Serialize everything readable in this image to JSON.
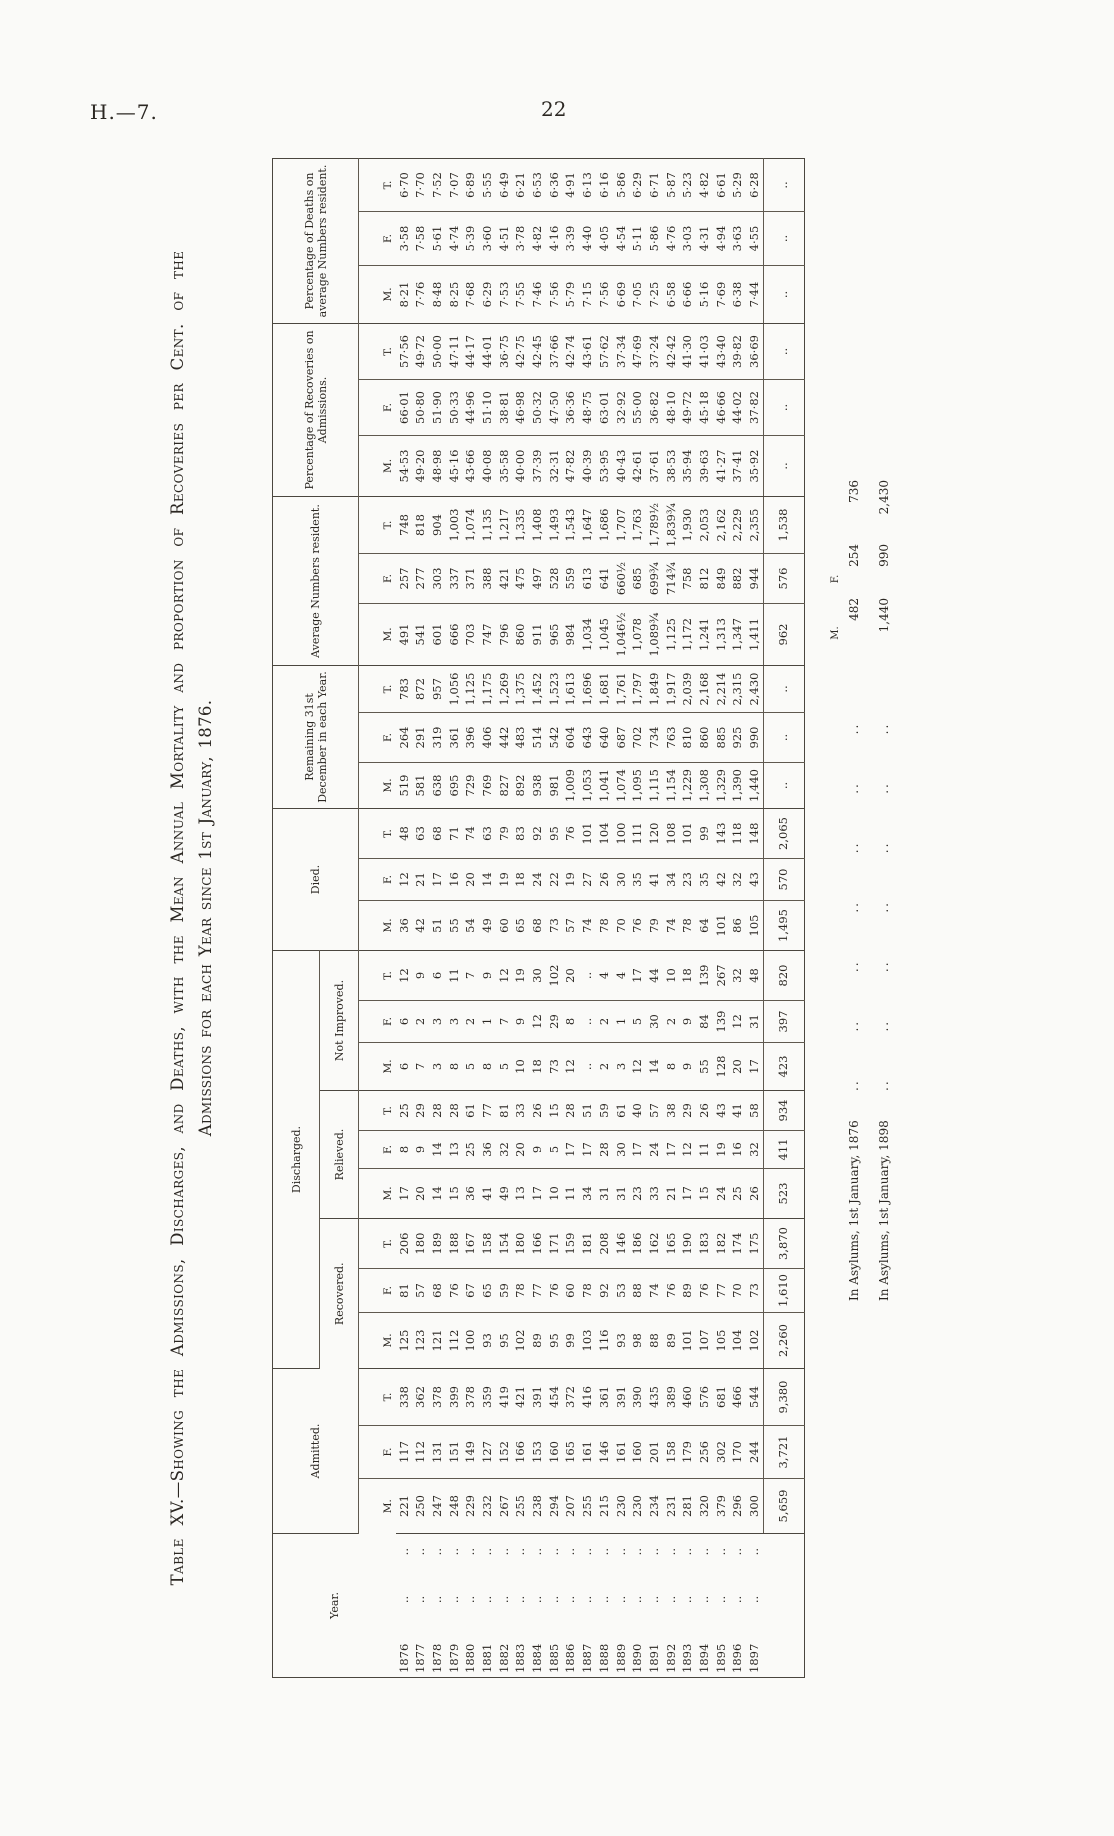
{
  "page": {
    "header_left": "H.—7.",
    "page_number": "22"
  },
  "title": {
    "line1": "Table XV.—Showing the Admissions, Discharges, and Deaths, with the Mean Annual Mortality and proportion of Recoveries per Cent. of the",
    "line2": "Admissions for each Year since 1st January, 1876."
  },
  "table": {
    "col_headers": {
      "year": "Year.",
      "admitted": "Admitted.",
      "discharged": "Discharged.",
      "recovered": "Recovered.",
      "relieved": "Relieved.",
      "not_improved": "Not Improved.",
      "died": "Died.",
      "remaining": "Remaining 31st December in each Year.",
      "average": "Average Numbers resident.",
      "pct_recoveries": "Percentage of Recoveries on Admissions.",
      "pct_deaths": "Percentage of Deaths on average Numbers resident.",
      "m": "M.",
      "f": "F.",
      "t": "T."
    },
    "rows": [
      {
        "year": "1876",
        "admitted": [
          "221",
          "117",
          "338"
        ],
        "recovered": [
          "125",
          "81",
          "206"
        ],
        "relieved": [
          "17",
          "8",
          "25"
        ],
        "not_improved": [
          "6",
          "6",
          "12"
        ],
        "died": [
          "36",
          "12",
          "48"
        ],
        "remaining": [
          "519",
          "264",
          "783"
        ],
        "average": [
          "491",
          "257",
          "748"
        ],
        "pct_recoveries": [
          "54·53",
          "66·01",
          "57·56"
        ],
        "pct_deaths": [
          "8·21",
          "3·58",
          "6·70"
        ]
      },
      {
        "year": "1877",
        "admitted": [
          "250",
          "112",
          "362"
        ],
        "recovered": [
          "123",
          "57",
          "180"
        ],
        "relieved": [
          "20",
          "9",
          "29"
        ],
        "not_improved": [
          "7",
          "2",
          "9"
        ],
        "died": [
          "42",
          "21",
          "63"
        ],
        "remaining": [
          "581",
          "291",
          "872"
        ],
        "average": [
          "541",
          "277",
          "818"
        ],
        "pct_recoveries": [
          "49·20",
          "50·80",
          "49·72"
        ],
        "pct_deaths": [
          "7·76",
          "7·58",
          "7·70"
        ]
      },
      {
        "year": "1878",
        "admitted": [
          "247",
          "131",
          "378"
        ],
        "recovered": [
          "121",
          "68",
          "189"
        ],
        "relieved": [
          "14",
          "14",
          "28"
        ],
        "not_improved": [
          "3",
          "3",
          "6"
        ],
        "died": [
          "51",
          "17",
          "68"
        ],
        "remaining": [
          "638",
          "319",
          "957"
        ],
        "average": [
          "601",
          "303",
          "904"
        ],
        "pct_recoveries": [
          "48·98",
          "51·90",
          "50·00"
        ],
        "pct_deaths": [
          "8·48",
          "5·61",
          "7·52"
        ]
      },
      {
        "year": "1879",
        "admitted": [
          "248",
          "151",
          "399"
        ],
        "recovered": [
          "112",
          "76",
          "188"
        ],
        "relieved": [
          "15",
          "13",
          "28"
        ],
        "not_improved": [
          "8",
          "3",
          "11"
        ],
        "died": [
          "55",
          "16",
          "71"
        ],
        "remaining": [
          "695",
          "361",
          "1,056"
        ],
        "average": [
          "666",
          "337",
          "1,003"
        ],
        "pct_recoveries": [
          "45·16",
          "50·33",
          "47·11"
        ],
        "pct_deaths": [
          "8·25",
          "4·74",
          "7·07"
        ]
      },
      {
        "year": "1880",
        "admitted": [
          "229",
          "149",
          "378"
        ],
        "recovered": [
          "100",
          "67",
          "167"
        ],
        "relieved": [
          "36",
          "25",
          "61"
        ],
        "not_improved": [
          "5",
          "2",
          "7"
        ],
        "died": [
          "54",
          "20",
          "74"
        ],
        "remaining": [
          "729",
          "396",
          "1,125"
        ],
        "average": [
          "703",
          "371",
          "1,074"
        ],
        "pct_recoveries": [
          "43·66",
          "44·96",
          "44·17"
        ],
        "pct_deaths": [
          "7·68",
          "5·39",
          "6·89"
        ]
      },
      {
        "year": "1881",
        "admitted": [
          "232",
          "127",
          "359"
        ],
        "recovered": [
          "93",
          "65",
          "158"
        ],
        "relieved": [
          "41",
          "36",
          "77"
        ],
        "not_improved": [
          "8",
          "1",
          "9"
        ],
        "died": [
          "49",
          "14",
          "63"
        ],
        "remaining": [
          "769",
          "406",
          "1,175"
        ],
        "average": [
          "747",
          "388",
          "1,135"
        ],
        "pct_recoveries": [
          "40·08",
          "51·10",
          "44·01"
        ],
        "pct_deaths": [
          "6·29",
          "3·60",
          "5·55"
        ]
      },
      {
        "year": "1882",
        "admitted": [
          "267",
          "152",
          "419"
        ],
        "recovered": [
          "95",
          "59",
          "154"
        ],
        "relieved": [
          "49",
          "32",
          "81"
        ],
        "not_improved": [
          "5",
          "7",
          "12"
        ],
        "died": [
          "60",
          "19",
          "79"
        ],
        "remaining": [
          "827",
          "442",
          "1,269"
        ],
        "average": [
          "796",
          "421",
          "1,217"
        ],
        "pct_recoveries": [
          "35·58",
          "38·81",
          "36·75"
        ],
        "pct_deaths": [
          "7·53",
          "4·51",
          "6·49"
        ]
      },
      {
        "year": "1883",
        "admitted": [
          "255",
          "166",
          "421"
        ],
        "recovered": [
          "102",
          "78",
          "180"
        ],
        "relieved": [
          "13",
          "20",
          "33"
        ],
        "not_improved": [
          "10",
          "9",
          "19"
        ],
        "died": [
          "65",
          "18",
          "83"
        ],
        "remaining": [
          "892",
          "483",
          "1,375"
        ],
        "average": [
          "860",
          "475",
          "1,335"
        ],
        "pct_recoveries": [
          "40·00",
          "46·98",
          "42·75"
        ],
        "pct_deaths": [
          "7·55",
          "3·78",
          "6·21"
        ]
      },
      {
        "year": "1884",
        "admitted": [
          "238",
          "153",
          "391"
        ],
        "recovered": [
          "89",
          "77",
          "166"
        ],
        "relieved": [
          "17",
          "9",
          "26"
        ],
        "not_improved": [
          "18",
          "12",
          "30"
        ],
        "died": [
          "68",
          "24",
          "92"
        ],
        "remaining": [
          "938",
          "514",
          "1,452"
        ],
        "average": [
          "911",
          "497",
          "1,408"
        ],
        "pct_recoveries": [
          "37·39",
          "50·32",
          "42·45"
        ],
        "pct_deaths": [
          "7·46",
          "4·82",
          "6·53"
        ]
      },
      {
        "year": "1885",
        "admitted": [
          "294",
          "160",
          "454"
        ],
        "recovered": [
          "95",
          "76",
          "171"
        ],
        "relieved": [
          "10",
          "5",
          "15"
        ],
        "not_improved": [
          "73",
          "29",
          "102"
        ],
        "died": [
          "73",
          "22",
          "95"
        ],
        "remaining": [
          "981",
          "542",
          "1,523"
        ],
        "average": [
          "965",
          "528",
          "1,493"
        ],
        "pct_recoveries": [
          "32·31",
          "47·50",
          "37·66"
        ],
        "pct_deaths": [
          "7·56",
          "4·16",
          "6·36"
        ]
      },
      {
        "year": "1886",
        "admitted": [
          "207",
          "165",
          "372"
        ],
        "recovered": [
          "99",
          "60",
          "159"
        ],
        "relieved": [
          "11",
          "17",
          "28"
        ],
        "not_improved": [
          "12",
          "8",
          "20"
        ],
        "died": [
          "57",
          "19",
          "76"
        ],
        "remaining": [
          "1,009",
          "604",
          "1,613"
        ],
        "average": [
          "984",
          "559",
          "1,543"
        ],
        "pct_recoveries": [
          "47·82",
          "36·36",
          "42·74"
        ],
        "pct_deaths": [
          "5·79",
          "3·39",
          "4·91"
        ]
      },
      {
        "year": "1887",
        "admitted": [
          "255",
          "161",
          "416"
        ],
        "recovered": [
          "103",
          "78",
          "181"
        ],
        "relieved": [
          "34",
          "17",
          "51"
        ],
        "not_improved": [
          "..",
          "..",
          ".."
        ],
        "died": [
          "74",
          "27",
          "101"
        ],
        "remaining": [
          "1,053",
          "643",
          "1,696"
        ],
        "average": [
          "1,034",
          "613",
          "1,647"
        ],
        "pct_recoveries": [
          "40·39",
          "48·75",
          "43·61"
        ],
        "pct_deaths": [
          "7·15",
          "4·40",
          "6·13"
        ]
      },
      {
        "year": "1888",
        "admitted": [
          "215",
          "146",
          "361"
        ],
        "recovered": [
          "116",
          "92",
          "208"
        ],
        "relieved": [
          "31",
          "28",
          "59"
        ],
        "not_improved": [
          "2",
          "2",
          "4"
        ],
        "died": [
          "78",
          "26",
          "104"
        ],
        "remaining": [
          "1,041",
          "640",
          "1,681"
        ],
        "average": [
          "1,045",
          "641",
          "1,686"
        ],
        "pct_recoveries": [
          "53·95",
          "63·01",
          "57·62"
        ],
        "pct_deaths": [
          "7·56",
          "4·05",
          "6·16"
        ]
      },
      {
        "year": "1889",
        "admitted": [
          "230",
          "161",
          "391"
        ],
        "recovered": [
          "93",
          "53",
          "146"
        ],
        "relieved": [
          "31",
          "30",
          "61"
        ],
        "not_improved": [
          "3",
          "1",
          "4"
        ],
        "died": [
          "70",
          "30",
          "100"
        ],
        "remaining": [
          "1,074",
          "687",
          "1,761"
        ],
        "average": [
          "1,046½",
          "660½",
          "1,707"
        ],
        "pct_recoveries": [
          "40·43",
          "32·92",
          "37·34"
        ],
        "pct_deaths": [
          "6·69",
          "4·54",
          "5·86"
        ]
      },
      {
        "year": "1890",
        "admitted": [
          "230",
          "160",
          "390"
        ],
        "recovered": [
          "98",
          "88",
          "186"
        ],
        "relieved": [
          "23",
          "17",
          "40"
        ],
        "not_improved": [
          "12",
          "5",
          "17"
        ],
        "died": [
          "76",
          "35",
          "111"
        ],
        "remaining": [
          "1,095",
          "702",
          "1,797"
        ],
        "average": [
          "1,078",
          "685",
          "1,763"
        ],
        "pct_recoveries": [
          "42·61",
          "55·00",
          "47·69"
        ],
        "pct_deaths": [
          "7·05",
          "5·11",
          "6·29"
        ]
      },
      {
        "year": "1891",
        "admitted": [
          "234",
          "201",
          "435"
        ],
        "recovered": [
          "88",
          "74",
          "162"
        ],
        "relieved": [
          "33",
          "24",
          "57"
        ],
        "not_improved": [
          "14",
          "30",
          "44"
        ],
        "died": [
          "79",
          "41",
          "120"
        ],
        "remaining": [
          "1,115",
          "734",
          "1,849"
        ],
        "average": [
          "1,089¾",
          "699¾",
          "1,789½"
        ],
        "pct_recoveries": [
          "37·61",
          "36·82",
          "37·24"
        ],
        "pct_deaths": [
          "7·25",
          "5·86",
          "6·71"
        ]
      },
      {
        "year": "1892",
        "admitted": [
          "231",
          "158",
          "389"
        ],
        "recovered": [
          "89",
          "76",
          "165"
        ],
        "relieved": [
          "21",
          "17",
          "38"
        ],
        "not_improved": [
          "8",
          "2",
          "10"
        ],
        "died": [
          "74",
          "34",
          "108"
        ],
        "remaining": [
          "1,154",
          "763",
          "1,917"
        ],
        "average": [
          "1,125",
          "714¾",
          "1,839¾"
        ],
        "pct_recoveries": [
          "38·53",
          "48·10",
          "42·42"
        ],
        "pct_deaths": [
          "6·58",
          "4·76",
          "5·87"
        ]
      },
      {
        "year": "1893",
        "admitted": [
          "281",
          "179",
          "460"
        ],
        "recovered": [
          "101",
          "89",
          "190"
        ],
        "relieved": [
          "17",
          "12",
          "29"
        ],
        "not_improved": [
          "9",
          "9",
          "18"
        ],
        "died": [
          "78",
          "23",
          "101"
        ],
        "remaining": [
          "1,229",
          "810",
          "2,039"
        ],
        "average": [
          "1,172",
          "758",
          "1,930"
        ],
        "pct_recoveries": [
          "35·94",
          "49·72",
          "41·30"
        ],
        "pct_deaths": [
          "6·66",
          "3·03",
          "5·23"
        ]
      },
      {
        "year": "1894",
        "admitted": [
          "320",
          "256",
          "576"
        ],
        "recovered": [
          "107",
          "76",
          "183"
        ],
        "relieved": [
          "15",
          "11",
          "26"
        ],
        "not_improved": [
          "55",
          "84",
          "139"
        ],
        "died": [
          "64",
          "35",
          "99"
        ],
        "remaining": [
          "1,308",
          "860",
          "2,168"
        ],
        "average": [
          "1,241",
          "812",
          "2,053"
        ],
        "pct_recoveries": [
          "39·63",
          "45·18",
          "41·03"
        ],
        "pct_deaths": [
          "5·16",
          "4·31",
          "4·82"
        ]
      },
      {
        "year": "1895",
        "admitted": [
          "379",
          "302",
          "681"
        ],
        "recovered": [
          "105",
          "77",
          "182"
        ],
        "relieved": [
          "24",
          "19",
          "43"
        ],
        "not_improved": [
          "128",
          "139",
          "267"
        ],
        "died": [
          "101",
          "42",
          "143"
        ],
        "remaining": [
          "1,329",
          "885",
          "2,214"
        ],
        "average": [
          "1,313",
          "849",
          "2,162"
        ],
        "pct_recoveries": [
          "41·27",
          "46·66",
          "43·40"
        ],
        "pct_deaths": [
          "7·69",
          "4·94",
          "6·61"
        ]
      },
      {
        "year": "1896",
        "admitted": [
          "296",
          "170",
          "466"
        ],
        "recovered": [
          "104",
          "70",
          "174"
        ],
        "relieved": [
          "25",
          "16",
          "41"
        ],
        "not_improved": [
          "20",
          "12",
          "32"
        ],
        "died": [
          "86",
          "32",
          "118"
        ],
        "remaining": [
          "1,390",
          "925",
          "2,315"
        ],
        "average": [
          "1,347",
          "882",
          "2,229"
        ],
        "pct_recoveries": [
          "37·41",
          "44·02",
          "39·82"
        ],
        "pct_deaths": [
          "6·38",
          "3·63",
          "5·29"
        ]
      },
      {
        "year": "1897",
        "admitted": [
          "300",
          "244",
          "544"
        ],
        "recovered": [
          "102",
          "73",
          "175"
        ],
        "relieved": [
          "26",
          "32",
          "58"
        ],
        "not_improved": [
          "17",
          "31",
          "48"
        ],
        "died": [
          "105",
          "43",
          "148"
        ],
        "remaining": [
          "1,440",
          "990",
          "2,430"
        ],
        "average": [
          "1,411",
          "944",
          "2,355"
        ],
        "pct_recoveries": [
          "35·92",
          "37·82",
          "36·69"
        ],
        "pct_deaths": [
          "7·44",
          "4·55",
          "6·28"
        ]
      }
    ],
    "totals": {
      "year": "",
      "admitted": [
        "5,659",
        "3,721",
        "9,380"
      ],
      "recovered": [
        "2,260",
        "1,610",
        "3,870"
      ],
      "relieved": [
        "523",
        "411",
        "934"
      ],
      "not_improved": [
        "423",
        "397",
        "820"
      ],
      "died": [
        "1,495",
        "570",
        "2,065"
      ],
      "remaining": [
        "..",
        "..",
        ".."
      ],
      "average": [
        "962",
        "576",
        "1,538"
      ],
      "pct_recoveries": [
        "..",
        "..",
        ".."
      ],
      "pct_deaths": [
        "..",
        "..",
        ".."
      ]
    }
  },
  "footnotes": {
    "mft_labels": [
      "M.",
      "F."
    ],
    "rows": [
      {
        "label": "In Asylums, 1st January, 1876",
        "leaders": ".. .. .. .. .. .. ..",
        "values": [
          "482",
          "254",
          "736"
        ]
      },
      {
        "label": "In Asylums, 1st January, 1898",
        "leaders": ".. .. .. .. .. .. ..",
        "values": [
          "1,440",
          "990",
          "2,430"
        ]
      }
    ]
  }
}
